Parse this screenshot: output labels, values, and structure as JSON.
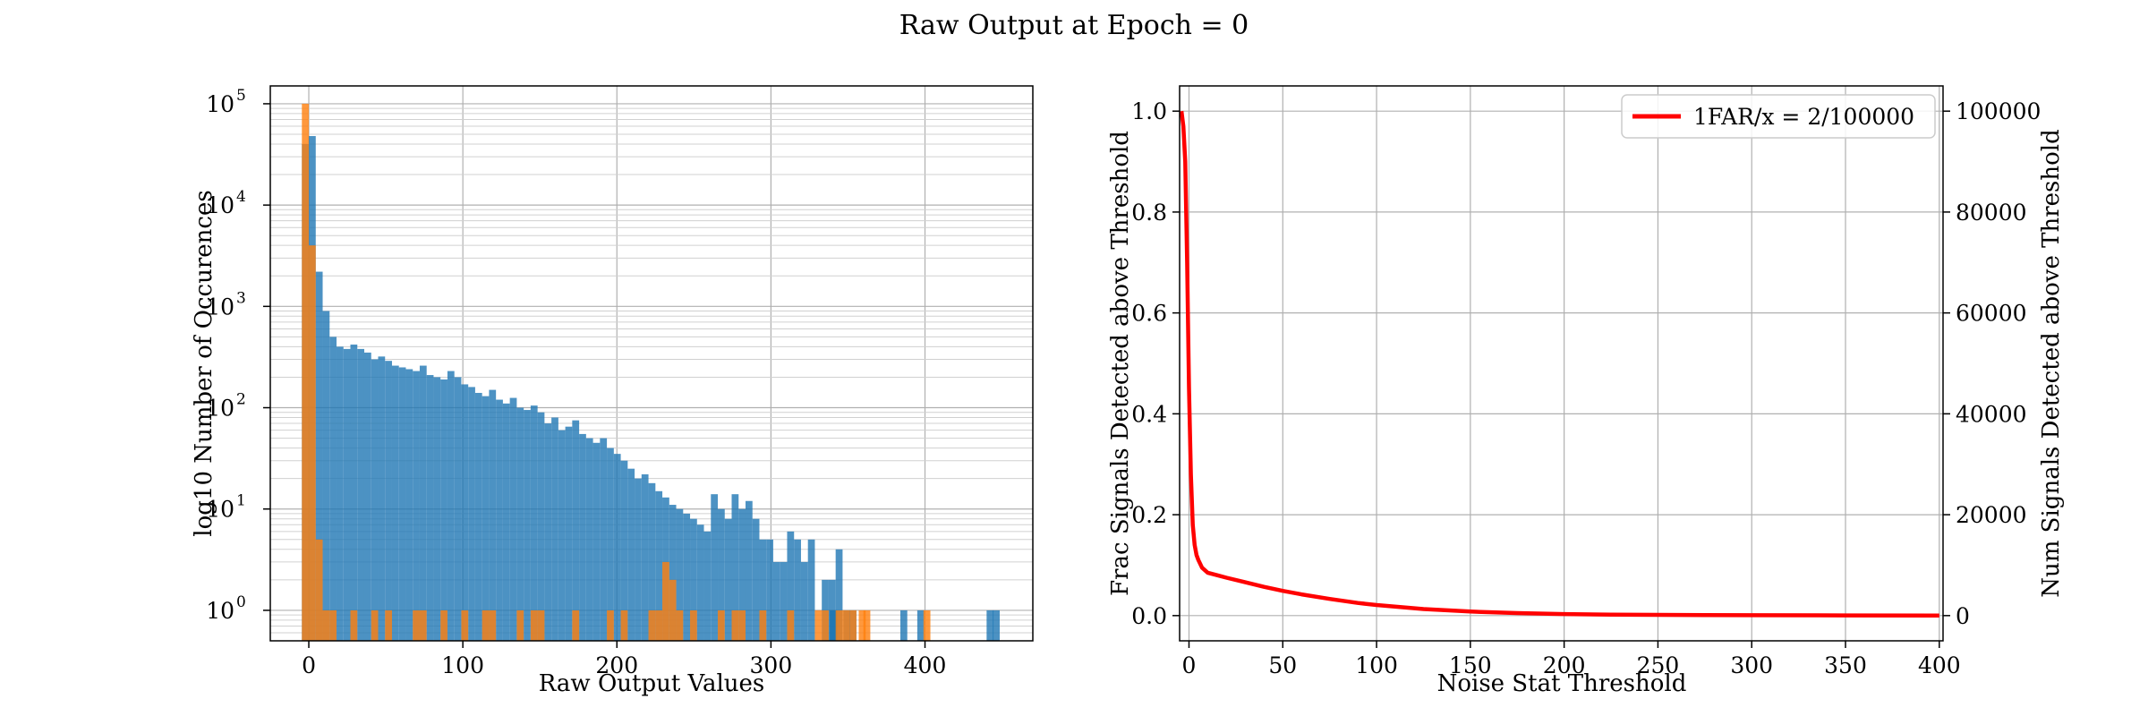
{
  "figure": {
    "title": "Raw Output at Epoch = 0"
  },
  "chart_data": [
    {
      "type": "bar",
      "subtype": "histogram",
      "xlabel": "Raw Output Values",
      "ylabel": "log10 Number of Occurences",
      "y_scale": "log",
      "xlim": [
        -25,
        470
      ],
      "ylim": [
        0.5,
        150000
      ],
      "xticks": [
        0,
        100,
        200,
        300,
        400
      ],
      "yticks": [
        1,
        10,
        100,
        1000,
        10000,
        100000
      ],
      "ytick_labels": [
        "10",
        "10",
        "10",
        "10",
        "10",
        "10"
      ],
      "ytick_exponents": [
        "0",
        "1",
        "2",
        "3",
        "4",
        "5"
      ],
      "grid": true,
      "bin_width": 4.5,
      "series": [
        {
          "color": "#1f77b4",
          "alpha": 0.8,
          "bin_start": -4.5,
          "counts": [
            40000,
            48000,
            2200,
            900,
            500,
            400,
            380,
            420,
            380,
            350,
            300,
            320,
            290,
            260,
            250,
            240,
            230,
            260,
            210,
            200,
            190,
            230,
            200,
            170,
            160,
            140,
            130,
            150,
            120,
            110,
            125,
            100,
            95,
            105,
            90,
            70,
            80,
            60,
            65,
            75,
            55,
            50,
            45,
            50,
            40,
            35,
            30,
            25,
            20,
            22,
            18,
            15,
            13,
            11,
            10,
            9,
            8,
            7,
            6,
            14,
            10,
            8,
            14,
            10,
            12,
            8,
            5,
            5,
            3,
            3,
            6,
            5,
            3,
            5,
            0,
            2,
            2,
            4,
            0,
            1,
            0,
            0,
            0,
            0,
            0,
            0,
            0,
            0,
            0,
            0,
            0,
            0,
            0,
            0,
            0,
            0,
            0,
            0,
            0,
            0,
            0,
            0,
            0,
            0,
            0,
            0,
            0,
            0,
            0,
            0,
            0,
            0,
            0,
            0,
            0,
            0,
            0,
            0,
            0,
            0,
            0,
            0,
            0,
            0,
            0,
            0,
            0,
            0,
            0,
            0,
            0,
            0,
            0,
            0,
            0,
            0,
            0,
            0,
            0,
            0,
            0,
            0,
            0,
            0,
            0,
            0,
            0,
            0,
            0,
            0,
            0,
            0,
            0,
            0,
            0,
            0,
            0,
            0,
            0,
            0,
            0,
            0,
            0,
            0,
            0,
            0,
            0,
            0,
            0,
            0,
            0,
            0,
            0,
            0,
            0,
            0,
            0,
            0,
            0,
            0,
            0,
            0,
            0,
            0,
            0,
            0,
            0,
            0,
            0,
            0,
            0,
            0,
            0,
            0,
            0,
            0
          ],
          "counts_note_bins": [
            [
              338,
              1
            ],
            [
              338.5,
              1
            ],
            [
              347,
              1
            ],
            [
              384,
              1
            ],
            [
              395,
              1
            ],
            [
              440,
              1
            ],
            [
              444,
              1
            ]
          ]
        },
        {
          "color": "#ff7f0e",
          "alpha": 0.8,
          "bin_start": -4.5,
          "counts": [
            100000,
            4000,
            5,
            1,
            1,
            0,
            0,
            1,
            0,
            0,
            1,
            0,
            1,
            0,
            0,
            0,
            1,
            1,
            0,
            0,
            1,
            0,
            0,
            1,
            0,
            0,
            1,
            1,
            0,
            0,
            0,
            1,
            0,
            1,
            1,
            0,
            0,
            0,
            0,
            1,
            0,
            0,
            0,
            0,
            1,
            0,
            1,
            0,
            0,
            0,
            1,
            1,
            3,
            2,
            1,
            0,
            1,
            0,
            0,
            0,
            1,
            0,
            1,
            1,
            0,
            0,
            1,
            0,
            0,
            0,
            1,
            0,
            0,
            0,
            1,
            1,
            0,
            1,
            1,
            0,
            0,
            1,
            0,
            0,
            0,
            0,
            0,
            0,
            0,
            0,
            0,
            0,
            0,
            0,
            0,
            0,
            0,
            0,
            0,
            0,
            0,
            0,
            0,
            0,
            0,
            0,
            0,
            0,
            0,
            0,
            0,
            0,
            0,
            0,
            0,
            0,
            0,
            0,
            0,
            0,
            0,
            0,
            0,
            0,
            0,
            0,
            0,
            0,
            0,
            0,
            0,
            0,
            0,
            0,
            0,
            0,
            0,
            0,
            0,
            0,
            0,
            0,
            0,
            0,
            0,
            0,
            0,
            0,
            0,
            0,
            0,
            0,
            0,
            0,
            0,
            0,
            0,
            0,
            0,
            0,
            0,
            0,
            0,
            0,
            0,
            0,
            0,
            0,
            0,
            0,
            0,
            0,
            0,
            0,
            0,
            0,
            0,
            0,
            0,
            0,
            0,
            0,
            0,
            0,
            0,
            0,
            0,
            0,
            0,
            0,
            0,
            0,
            0,
            0,
            0,
            0
          ],
          "counts_note_bins": [
            [
              351,
              1
            ],
            [
              357,
              1
            ],
            [
              399,
              1
            ]
          ]
        }
      ]
    },
    {
      "type": "line",
      "xlabel": "Noise Stat Threshold",
      "ylabel": "Frac Signals Detected above Threshold",
      "ylabel_right": "Num Signals Detected above Threshold",
      "xlim": [
        -5,
        402
      ],
      "ylim": [
        -0.05,
        1.05
      ],
      "ylim_right": [
        -5000,
        105000
      ],
      "xticks": [
        0,
        50,
        100,
        150,
        200,
        250,
        300,
        350,
        400
      ],
      "yticks": [
        0.0,
        0.2,
        0.4,
        0.6,
        0.8,
        1.0
      ],
      "ytick_labels": [
        "0.0",
        "0.2",
        "0.4",
        "0.6",
        "0.8",
        "1.0"
      ],
      "yticks_right": [
        0,
        20000,
        40000,
        60000,
        80000,
        100000
      ],
      "ytick_labels_right": [
        "0",
        "20000",
        "40000",
        "60000",
        "80000",
        "100000"
      ],
      "grid": true,
      "legend_position": "top-right",
      "series": [
        {
          "name": "1FAR/x = 2/100000",
          "color": "#ff0000",
          "x": [
            -4,
            -3,
            -2,
            -1,
            0,
            1,
            2,
            3,
            4,
            5,
            7,
            10,
            15,
            20,
            30,
            40,
            50,
            60,
            75,
            90,
            100,
            125,
            150,
            175,
            200,
            225,
            250,
            275,
            300,
            350,
            400
          ],
          "y": [
            1.0,
            0.97,
            0.9,
            0.7,
            0.45,
            0.28,
            0.18,
            0.14,
            0.12,
            0.11,
            0.095,
            0.085,
            0.08,
            0.075,
            0.066,
            0.057,
            0.049,
            0.042,
            0.033,
            0.025,
            0.021,
            0.013,
            0.008,
            0.005,
            0.003,
            0.002,
            0.0015,
            0.001,
            0.0007,
            0.0003,
            0.0002
          ]
        }
      ]
    }
  ]
}
